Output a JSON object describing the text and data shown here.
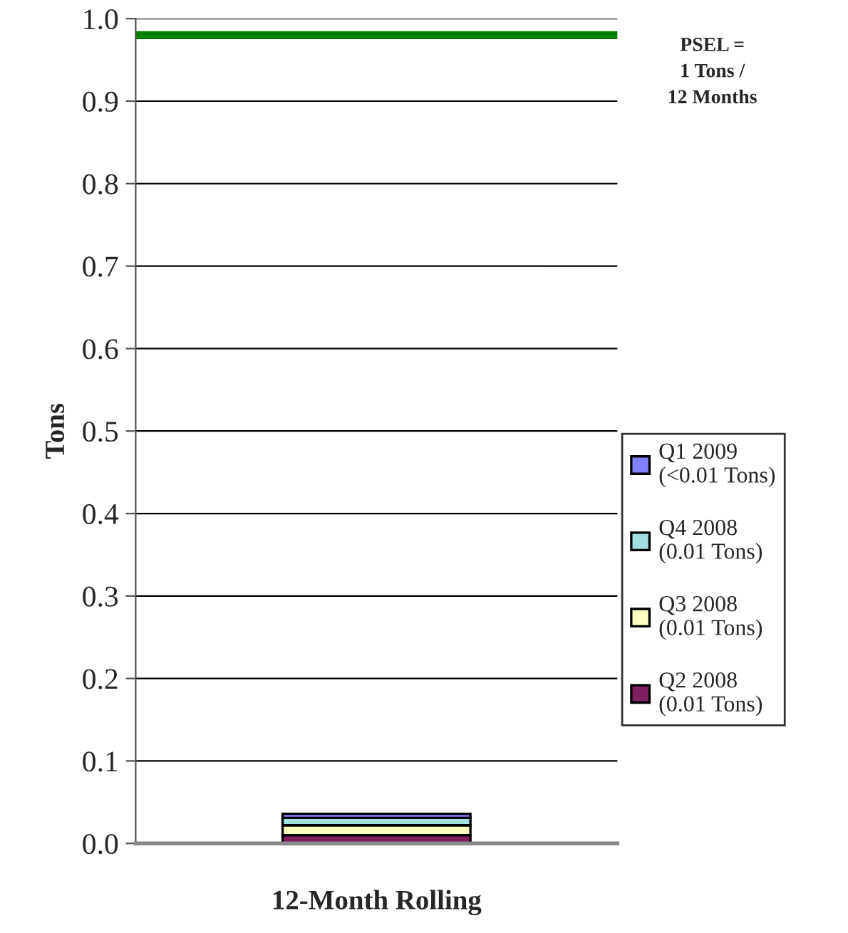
{
  "chart_data": {
    "type": "bar",
    "stacked": true,
    "xlabel": "12-Month Rolling",
    "ylabel": "Tons",
    "categories": [
      null
    ],
    "series": [
      {
        "name": "Q2 2008\n(0.01 Tons)",
        "color": "#7f1f5f",
        "values": [
          0.01
        ]
      },
      {
        "name": "Q3 2008\n(0.01 Tons)",
        "color": "#ffffc0",
        "values": [
          0.012
        ]
      },
      {
        "name": "Q4 2008\n(0.01 Tons)",
        "color": "#a0e0e0",
        "values": [
          0.009
        ]
      },
      {
        "name": "Q1 2009\n(<0.01 Tons)",
        "color": "#8080ff",
        "values": [
          0.005
        ]
      }
    ],
    "ylim": [
      0,
      1.0
    ],
    "yticks": [
      {
        "value": 0,
        "label": "0.0"
      },
      {
        "value": 0.1,
        "label": "0.1"
      },
      {
        "value": 0.2,
        "label": "0.2"
      },
      {
        "value": 0.3,
        "label": "0.3"
      },
      {
        "value": 0.4,
        "label": "0.4"
      },
      {
        "value": 0.5,
        "label": "0.5"
      },
      {
        "value": 0.6,
        "label": "0.6"
      },
      {
        "value": 0.7,
        "label": "0.7"
      },
      {
        "value": 0.8,
        "label": "0.8"
      },
      {
        "value": 0.9,
        "label": "0.9"
      },
      {
        "value": 1.0,
        "label": "1.0"
      }
    ],
    "ref_lines": [
      {
        "axis": "y",
        "value": 0.98,
        "label": "PSEL =\n1 Tons /\n12 Months",
        "color": "#008000"
      }
    ],
    "grid": "y",
    "legend": "right"
  }
}
